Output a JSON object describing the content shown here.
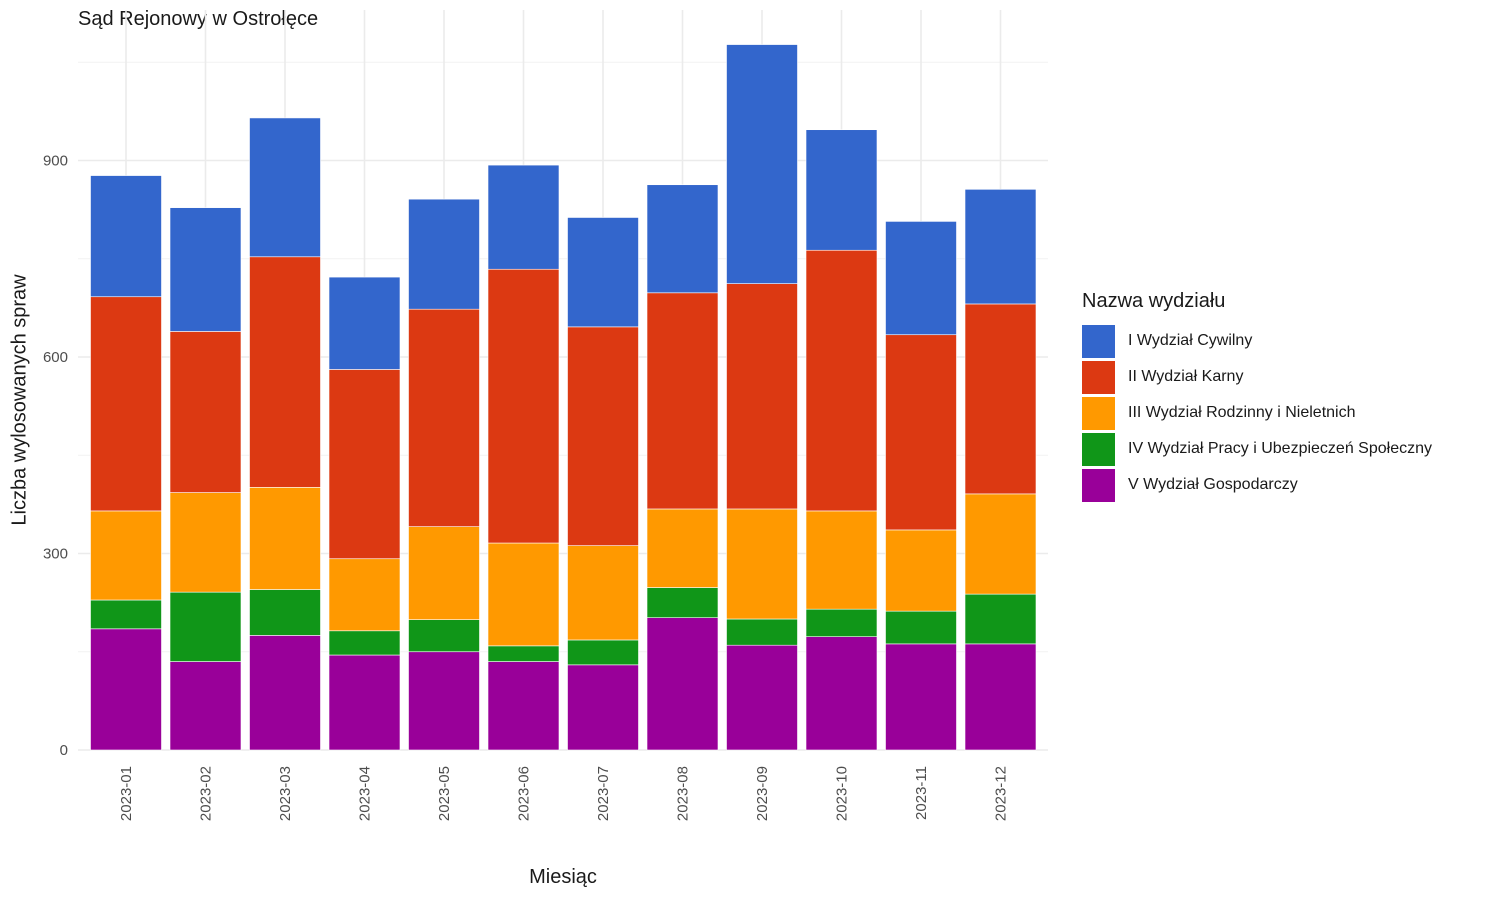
{
  "chart_data": {
    "type": "bar",
    "stacked": true,
    "title": "Sąd Rejonowy w Ostrołęce",
    "xlabel": "Miesiąc",
    "ylabel": "Liczba wylosowanych spraw",
    "ylim": [
      0,
      1100
    ],
    "yticks": [
      0,
      300,
      600,
      900
    ],
    "grid": true,
    "legend_title": "Nazwa wydziału",
    "legend_position": "right",
    "categories": [
      "2023-01",
      "2023-02",
      "2023-03",
      "2023-04",
      "2023-05",
      "2023-06",
      "2023-07",
      "2023-08",
      "2023-09",
      "2023-10",
      "2023-11",
      "2023-12"
    ],
    "series": [
      {
        "name": "V Wydział Gospodarczy",
        "color": "#990099",
        "values": [
          185,
          135,
          175,
          145,
          150,
          135,
          130,
          202,
          160,
          173,
          162,
          162
        ]
      },
      {
        "name": "IV Wydział Pracy i Ubezpieczeń Społeczny",
        "color": "#109618",
        "values": [
          44,
          106,
          70,
          37,
          49,
          24,
          38,
          46,
          40,
          42,
          50,
          76
        ]
      },
      {
        "name": "III Wydział Rodzinny i Nieletnich",
        "color": "#FF9900",
        "values": [
          136,
          152,
          156,
          110,
          142,
          157,
          144,
          120,
          168,
          150,
          124,
          153
        ]
      },
      {
        "name": "II Wydział Karny",
        "color": "#DC3912",
        "values": [
          327,
          246,
          352,
          289,
          332,
          418,
          334,
          330,
          344,
          398,
          298,
          290
        ]
      },
      {
        "name": "I Wydział Cywilny",
        "color": "#3366CC",
        "values": [
          185,
          189,
          212,
          141,
          168,
          159,
          167,
          165,
          365,
          184,
          173,
          175
        ]
      }
    ]
  },
  "legend": {
    "title": "Nazwa wydziału",
    "items": [
      {
        "label": "I Wydział Cywilny",
        "color": "#3366CC"
      },
      {
        "label": "II Wydział Karny",
        "color": "#DC3912"
      },
      {
        "label": "III Wydział Rodzinny i Nieletnich",
        "color": "#FF9900"
      },
      {
        "label": "IV Wydział Pracy i Ubezpieczeń Społeczny",
        "color": "#109618"
      },
      {
        "label": "V Wydział Gospodarczy",
        "color": "#990099"
      }
    ]
  }
}
